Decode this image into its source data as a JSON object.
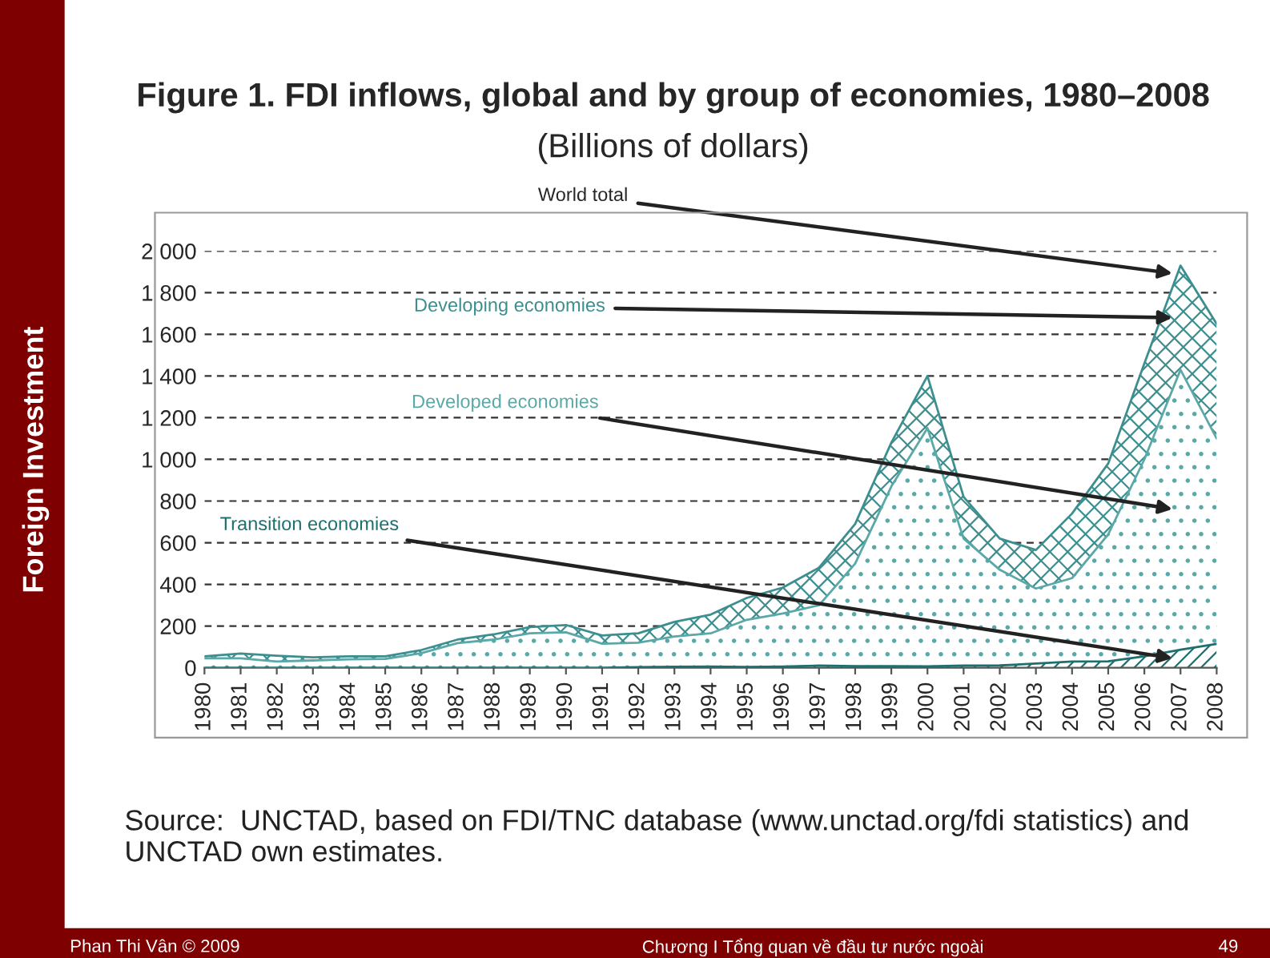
{
  "chart_data": {
    "type": "area",
    "stacked": true,
    "title": "Figure 1. FDI inflows, global and by group of economies, 1980–2008",
    "subtitle": "(Billions of dollars)",
    "x": [
      1980,
      1981,
      1982,
      1983,
      1984,
      1985,
      1986,
      1987,
      1988,
      1989,
      1990,
      1991,
      1992,
      1993,
      1994,
      1995,
      1996,
      1997,
      1998,
      1999,
      2000,
      2001,
      2002,
      2003,
      2004,
      2005,
      2006,
      2007,
      2008
    ],
    "series": [
      {
        "name": "Transition economies",
        "color": "#1f6f6f",
        "values": [
          0,
          0,
          0,
          0,
          0,
          0,
          0,
          0,
          0,
          0,
          0,
          0,
          3,
          5,
          6,
          4,
          6,
          10,
          8,
          8,
          7,
          10,
          11,
          20,
          30,
          31,
          55,
          86,
          114
        ]
      },
      {
        "name": "Developed economies",
        "color": "#5aa8a8",
        "values": [
          45,
          45,
          30,
          35,
          40,
          42,
          70,
          118,
          135,
          165,
          170,
          115,
          117,
          145,
          159,
          226,
          254,
          290,
          492,
          862,
          1143,
          610,
          459,
          360,
          400,
          609,
          945,
          1344,
          986
        ]
      },
      {
        "name": "Developing economies",
        "color": "#3d8f8f",
        "values": [
          10,
          23,
          28,
          15,
          15,
          13,
          15,
          17,
          25,
          30,
          35,
          40,
          45,
          70,
          90,
          105,
          125,
          180,
          190,
          210,
          250,
          200,
          150,
          185,
          310,
          340,
          460,
          500,
          550
        ]
      }
    ],
    "xlim": [
      1980,
      2008
    ],
    "xticks": [
      1980,
      1981,
      1982,
      1983,
      1984,
      1985,
      1986,
      1987,
      1988,
      1989,
      1990,
      1991,
      1992,
      1993,
      1994,
      1995,
      1996,
      1997,
      1998,
      1999,
      2000,
      2001,
      2002,
      2003,
      2004,
      2005,
      2006,
      2007,
      2008
    ],
    "ylim": [
      0,
      2000
    ],
    "yticks": [
      0,
      200,
      400,
      600,
      800,
      {
        "value": 1000,
        "label": "1 000"
      },
      {
        "value": 1200,
        "label": "1 200"
      },
      {
        "value": 1400,
        "label": "1 400"
      },
      {
        "value": 1600,
        "label": "1 600"
      },
      {
        "value": 1800,
        "label": "1 800"
      },
      {
        "value": 2000,
        "label": "2 000"
      }
    ],
    "grid": "y",
    "legend": false,
    "annotations": [
      {
        "text": "World total",
        "x": 2007,
        "y": 1930
      },
      "Source:  UNCTAD, based on FDI/TNC database (www.unctad.org/fdi statistics) and UNCTAD own estimates.",
      "Foreign Investment",
      "Phan Thi Vân © 2009",
      "Chương I Tổng quan về đầu tư nước ngoài",
      "49"
    ]
  }
}
